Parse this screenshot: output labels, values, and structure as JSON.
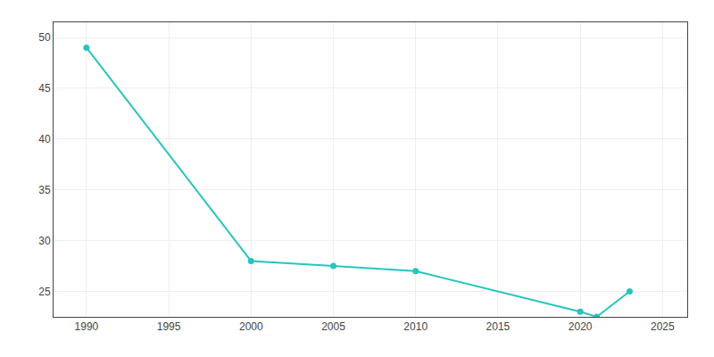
{
  "chart_data": {
    "type": "line",
    "x": [
      1990,
      2000,
      2005,
      2010,
      2020,
      2021,
      2023
    ],
    "values": [
      49,
      28,
      27.5,
      27,
      23,
      22.5,
      25
    ],
    "color": "#29c4c0",
    "marker": "circle",
    "line_style": "solid",
    "xlim": [
      1988,
      2026.5
    ],
    "ylim": [
      22.5,
      51.5
    ],
    "xticks": [
      1990,
      1995,
      2000,
      2005,
      2010,
      2015,
      2020,
      2025
    ],
    "yticks": [
      25,
      30,
      35,
      40,
      45,
      50
    ],
    "grid": true
  }
}
